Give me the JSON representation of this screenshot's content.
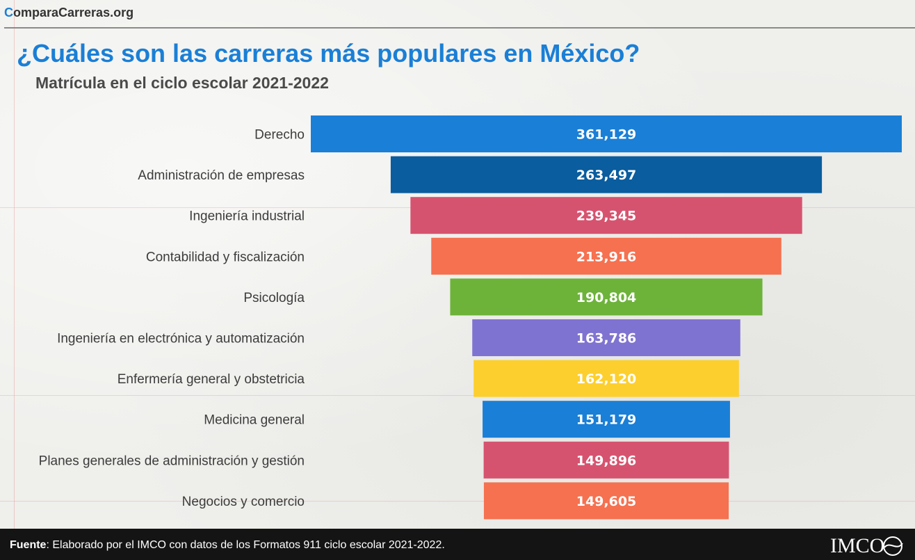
{
  "brand": {
    "first_letter": "C",
    "rest": "omparaCarreras.org"
  },
  "title": "¿Cuáles son las carreras más populares en México?",
  "subtitle": "Matrícula en el ciclo escolar 2021-2022",
  "footer": {
    "label": "Fuente",
    "text": ": Elaborado por el IMCO con datos de los Formatos 911 ciclo escolar 2021-2022.",
    "logo_text": "IMCO"
  },
  "colors": {
    "title": "#1a7fd6",
    "bars": [
      "#1a7fd6",
      "#0a5d9e",
      "#d6536f",
      "#f57150",
      "#6db33a",
      "#7f73d1",
      "#fccf2e",
      "#1a7fd6",
      "#d6536f",
      "#f57150"
    ]
  },
  "chart_data": {
    "type": "bar",
    "orientation": "horizontal-centered",
    "categories": [
      "Derecho",
      "Administración de empresas",
      "Ingeniería industrial",
      "Contabilidad y fiscalización",
      "Psicología",
      "Ingeniería en electrónica y automatización",
      "Enfermería general y obstetricia",
      "Medicina general",
      "Planes generales de administración y gestión",
      "Negocios y comercio"
    ],
    "values": [
      361129,
      263497,
      239345,
      213916,
      190804,
      163786,
      162120,
      151179,
      149896,
      149605
    ],
    "value_labels": [
      "361,129",
      "263,497",
      "239,345",
      "213,916",
      "190,804",
      "163,786",
      "162,120",
      "151,179",
      "149,896",
      "149,605"
    ]
  }
}
